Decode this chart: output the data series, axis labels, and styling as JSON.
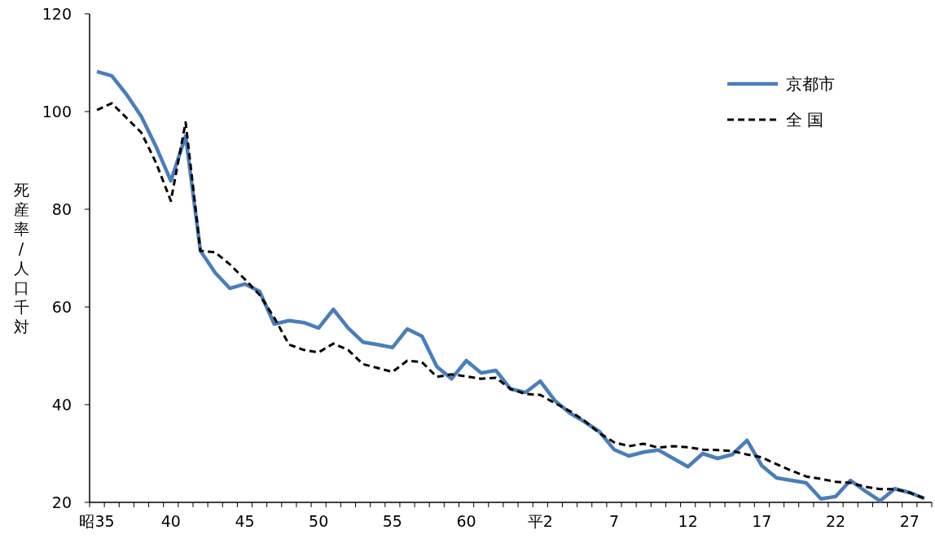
{
  "chart_data": {
    "type": "line",
    "ylabel": "死産率/人口千対",
    "categories": [
      "昭35",
      null,
      null,
      null,
      null,
      "40",
      null,
      null,
      null,
      null,
      "45",
      null,
      null,
      null,
      null,
      "50",
      null,
      null,
      null,
      null,
      "55",
      null,
      null,
      null,
      null,
      "60",
      null,
      null,
      null,
      null,
      "平2",
      null,
      null,
      null,
      null,
      "7",
      null,
      null,
      null,
      null,
      "12",
      null,
      null,
      null,
      null,
      "17",
      null,
      null,
      null,
      null,
      "22",
      null,
      null,
      null,
      null,
      "27",
      null
    ],
    "series": [
      {
        "name": "京都市",
        "color": "#4a7ebb",
        "line_style": "solid",
        "values": [
          108.2,
          107.3,
          103.5,
          99,
          92.8,
          85.8,
          95,
          71.5,
          67,
          63.8,
          64.7,
          63.2,
          56.5,
          57.2,
          56.8,
          55.7,
          59.5,
          55.7,
          52.8,
          52.3,
          51.7,
          55.5,
          54,
          47.8,
          45.3,
          49,
          46.5,
          47,
          43.2,
          42.5,
          44.8,
          40.8,
          38.3,
          36.5,
          34.5,
          30.8,
          29.5,
          30.3,
          30.7,
          29,
          27.3,
          30,
          29,
          29.8,
          32.7,
          27.5,
          25,
          24.5,
          24,
          20.7,
          21.2,
          24.5,
          22.3,
          20.3,
          22.8,
          22,
          20.8
        ]
      },
      {
        "name": "全 国",
        "color": "#000000",
        "line_style": "dashed",
        "values": [
          100.3,
          101.7,
          98.7,
          95.7,
          89.5,
          81.7,
          97.8,
          71.5,
          71.2,
          68.7,
          65.7,
          62.5,
          57.8,
          52.3,
          51.2,
          50.7,
          52.5,
          51.2,
          48.3,
          47.5,
          46.7,
          49,
          48.7,
          45.7,
          46.2,
          45.8,
          45.3,
          45.5,
          43.2,
          42.2,
          42,
          40.3,
          38.7,
          36.7,
          34.2,
          32.3,
          31.5,
          32,
          31.2,
          31.5,
          31.3,
          30.8,
          30.7,
          30.5,
          29.8,
          29.2,
          27.8,
          26.5,
          25.3,
          24.8,
          24.2,
          24,
          23.2,
          22.7,
          22.7,
          22,
          20.8
        ]
      }
    ],
    "ylim": [
      20,
      120
    ],
    "yticks": [
      20,
      40,
      60,
      80,
      100,
      120
    ],
    "legend": "top right",
    "marker": "none"
  }
}
